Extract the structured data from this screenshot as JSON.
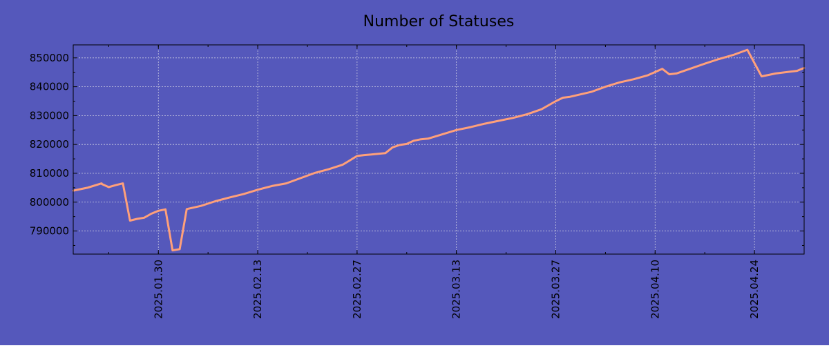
{
  "chart_data": {
    "type": "line",
    "title": "Number of Statuses",
    "xlabel": "",
    "ylabel": "",
    "x_type": "date",
    "xlim": [
      "2025-01-18",
      "2025-05-01"
    ],
    "ylim": [
      782000,
      854500
    ],
    "x_ticks": [
      "2025-01-30",
      "2025-02-13",
      "2025-02-27",
      "2025-03-13",
      "2025-03-27",
      "2025-04-10",
      "2025-04-24"
    ],
    "x_tick_labels": [
      "2025.01.30",
      "2025.02.13",
      "2025.02.27",
      "2025.03.13",
      "2025.03.27",
      "2025.04.10",
      "2025.04.24"
    ],
    "y_ticks": [
      790000,
      800000,
      810000,
      820000,
      830000,
      840000,
      850000
    ],
    "y_tick_labels": [
      "790000",
      "800000",
      "810000",
      "820000",
      "830000",
      "840000",
      "850000"
    ],
    "grid": true,
    "colors": {
      "background": "#5558bb",
      "line": "#ffa07a",
      "grid": "#c8c8e0",
      "text": "#000000"
    },
    "series": [
      {
        "x": [
          "2025-01-18",
          "2025-01-20",
          "2025-01-22",
          "2025-01-22",
          "2025-01-23",
          "2025-01-24",
          "2025-01-25",
          "2025-01-26",
          "2025-01-27",
          "2025-01-28",
          "2025-01-29",
          "2025-01-30",
          "2025-01-31",
          "2025-02-01",
          "2025-02-02",
          "2025-02-03",
          "2025-02-05",
          "2025-02-07",
          "2025-02-09",
          "2025-02-11",
          "2025-02-13",
          "2025-02-15",
          "2025-02-17",
          "2025-02-19",
          "2025-02-21",
          "2025-02-23",
          "2025-02-25",
          "2025-02-27",
          "2025-02-28",
          "2025-03-01",
          "2025-03-03",
          "2025-03-04",
          "2025-03-05",
          "2025-03-06",
          "2025-03-07",
          "2025-03-08",
          "2025-03-09",
          "2025-03-11",
          "2025-03-13",
          "2025-03-15",
          "2025-03-17",
          "2025-03-19",
          "2025-03-21",
          "2025-03-23",
          "2025-03-25",
          "2025-03-27",
          "2025-03-28",
          "2025-03-29",
          "2025-04-01",
          "2025-04-03",
          "2025-04-05",
          "2025-04-07",
          "2025-04-09",
          "2025-04-11",
          "2025-04-12",
          "2025-04-13",
          "2025-04-15",
          "2025-04-17",
          "2025-04-19",
          "2025-04-21",
          "2025-04-23",
          "2025-04-25",
          "2025-04-27",
          "2025-04-30",
          "2025-05-01"
        ],
        "y": [
          804000,
          805000,
          806500,
          806300,
          805200,
          805900,
          806500,
          793600,
          794200,
          794600,
          796000,
          797000,
          797500,
          783300,
          783700,
          797600,
          798700,
          800300,
          801600,
          802800,
          804300,
          805600,
          806500,
          808300,
          810100,
          811400,
          813000,
          816000,
          816300,
          816500,
          817000,
          819000,
          819800,
          820200,
          821300,
          821800,
          822000,
          823500,
          825000,
          826000,
          827200,
          828200,
          829200,
          830500,
          832200,
          835000,
          836200,
          836500,
          838200,
          840000,
          841500,
          842600,
          844000,
          846200,
          844300,
          844600,
          846300,
          848000,
          849600,
          851000,
          852800,
          843600,
          844600,
          845500,
          846500
        ]
      }
    ]
  }
}
